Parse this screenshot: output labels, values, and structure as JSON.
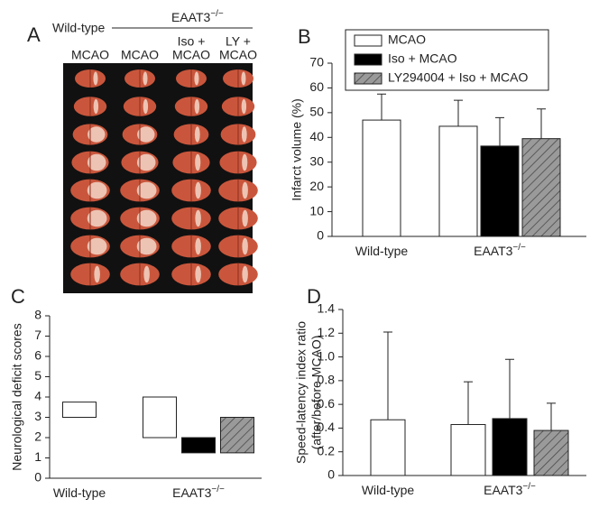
{
  "panel_a": {
    "letter": "A",
    "group_labels": [
      "Wild-type",
      "EAAT3"
    ],
    "group_superscript": "−/−",
    "columns": [
      [
        "MCAO"
      ],
      [
        "MCAO"
      ],
      [
        "Iso +",
        "MCAO"
      ],
      [
        "LY +",
        "MCAO"
      ]
    ]
  },
  "chart_data": [
    {
      "type": "bar",
      "letter": "B",
      "y_label": [
        "Infarct volume (%)"
      ],
      "categories": [
        "Wild-type",
        "EAAT3"
      ],
      "category_superscripts": [
        null,
        "−/−"
      ],
      "ylim": [
        0,
        70
      ],
      "yticks": [
        0,
        10,
        20,
        30,
        40,
        50,
        60,
        70
      ],
      "legend": "top-right",
      "series": [
        {
          "name": "MCAO",
          "color": "#ffffff",
          "values": [
            47,
            44.5
          ],
          "errors": [
            10.5,
            10.5
          ]
        },
        {
          "name": "Iso + MCAO",
          "color": "#000000",
          "values": [
            null,
            36.5
          ],
          "errors": [
            null,
            11.5
          ]
        },
        {
          "name": "LY294004 + Iso + MCAO",
          "color": "#999999",
          "hatch": true,
          "values": [
            null,
            39.5
          ],
          "errors": [
            null,
            12
          ]
        }
      ]
    },
    {
      "type": "floating-bar",
      "letter": "C",
      "y_label": [
        "Neurological deficit scores"
      ],
      "categories": [
        "Wild-type",
        "EAAT3"
      ],
      "category_superscripts": [
        null,
        "−/−"
      ],
      "ylim": [
        0,
        8
      ],
      "yticks": [
        0,
        1,
        2,
        3,
        4,
        5,
        6,
        7,
        8
      ],
      "series": [
        {
          "color": "#ffffff",
          "low": [
            3,
            2
          ],
          "high": [
            3.75,
            4
          ]
        },
        {
          "color": "#000000",
          "low": [
            null,
            1.25
          ],
          "high": [
            null,
            2
          ]
        },
        {
          "color": "#999999",
          "hatch": true,
          "low": [
            null,
            1.25
          ],
          "high": [
            null,
            3
          ]
        }
      ]
    },
    {
      "type": "bar",
      "letter": "D",
      "y_label": [
        "Speed-latency index ratio",
        "(after/before MCAO)"
      ],
      "categories": [
        "Wild-type",
        "EAAT3"
      ],
      "category_superscripts": [
        null,
        "−/−"
      ],
      "ylim": [
        0,
        1.4
      ],
      "yticks": [
        0,
        0.2,
        0.4,
        0.6,
        0.8,
        {
          "value": 1,
          "label": "1.0"
        },
        1.2,
        1.4
      ],
      "series": [
        {
          "color": "#ffffff",
          "values": [
            0.47,
            0.43
          ],
          "errors": [
            0.74,
            0.36
          ]
        },
        {
          "color": "#000000",
          "values": [
            null,
            0.48
          ],
          "errors": [
            null,
            0.5
          ]
        },
        {
          "color": "#999999",
          "hatch": true,
          "values": [
            null,
            0.38
          ],
          "errors": [
            null,
            0.23
          ]
        }
      ]
    }
  ]
}
